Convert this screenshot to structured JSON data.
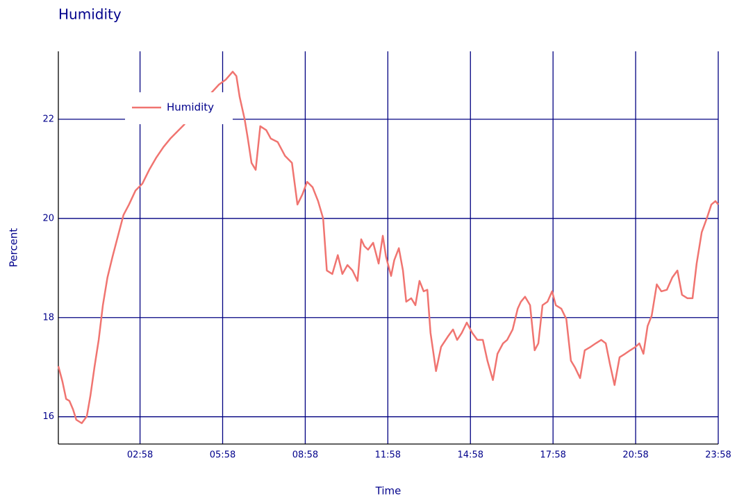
{
  "chart_data": {
    "type": "line",
    "title": "Humidity",
    "x_label": "Time",
    "y_label": "Percent",
    "x": [
      0,
      9,
      17,
      24,
      32,
      39,
      51,
      62,
      70,
      79,
      88,
      97,
      107,
      118,
      130,
      142,
      154,
      168,
      183,
      198,
      213,
      229,
      244,
      259,
      274,
      289,
      304,
      319,
      335,
      350,
      365,
      380,
      388,
      395,
      406,
      413,
      421,
      430,
      440,
      453,
      463,
      478,
      494,
      509,
      521,
      532,
      542,
      554,
      566,
      577,
      585,
      597,
      609,
      619,
      630,
      641,
      652,
      660,
      667,
      675,
      686,
      698,
      707,
      714,
      725,
      732,
      742,
      751,
      758,
      769,
      778,
      787,
      796,
      804,
      811,
      823,
      834,
      849,
      860,
      869,
      879,
      890,
      902,
      913,
      925,
      935,
      947,
      957,
      969,
      978,
      990,
      1001,
      1008,
      1017,
      1028,
      1038,
      1046,
      1055,
      1066,
      1076,
      1084,
      1096,
      1107,
      1117,
      1126,
      1137,
      1147,
      1160,
      1171,
      1183,
      1193,
      1202,
      1212,
      1223,
      1235,
      1246,
      1258,
      1266,
      1275,
      1284,
      1293,
      1304,
      1314,
      1326,
      1338,
      1349,
      1359,
      1371,
      1382,
      1391,
      1402,
      1413,
      1423,
      1432,
      1438
    ],
    "series": [
      {
        "name": "Humidity",
        "color": "#f07470",
        "values": [
          17.02,
          16.71,
          16.36,
          16.32,
          16.15,
          15.94,
          15.87,
          16.01,
          16.43,
          17.02,
          17.55,
          18.25,
          18.81,
          19.23,
          19.65,
          20.07,
          20.28,
          20.56,
          20.7,
          20.98,
          21.22,
          21.44,
          21.61,
          21.75,
          21.89,
          22.1,
          22.24,
          22.38,
          22.55,
          22.7,
          22.8,
          22.96,
          22.87,
          22.45,
          22.0,
          21.61,
          21.12,
          20.98,
          21.86,
          21.78,
          21.61,
          21.54,
          21.26,
          21.12,
          20.28,
          20.49,
          20.74,
          20.63,
          20.35,
          20.0,
          18.95,
          18.88,
          19.26,
          18.88,
          19.06,
          18.95,
          18.74,
          19.58,
          19.44,
          19.37,
          19.51,
          19.09,
          19.65,
          19.23,
          18.84,
          19.16,
          19.4,
          18.95,
          18.32,
          18.39,
          18.25,
          18.74,
          18.53,
          18.56,
          17.69,
          16.92,
          17.41,
          17.62,
          17.76,
          17.55,
          17.69,
          17.9,
          17.69,
          17.55,
          17.55,
          17.13,
          16.74,
          17.27,
          17.48,
          17.55,
          17.76,
          18.18,
          18.32,
          18.42,
          18.25,
          17.34,
          17.48,
          18.25,
          18.32,
          18.53,
          18.25,
          18.18,
          17.97,
          17.13,
          16.99,
          16.78,
          17.34,
          17.41,
          17.48,
          17.55,
          17.48,
          17.06,
          16.64,
          17.2,
          17.27,
          17.34,
          17.41,
          17.48,
          17.27,
          17.83,
          18.04,
          18.67,
          18.53,
          18.56,
          18.81,
          18.95,
          18.46,
          18.39,
          18.39,
          19.09,
          19.72,
          20.0,
          20.28,
          20.35,
          20.28
        ]
      }
    ],
    "xlim": [
      0,
      1438
    ],
    "xticks": [
      {
        "value": 178,
        "label": "02:58"
      },
      {
        "value": 358,
        "label": "05:58"
      },
      {
        "value": 538,
        "label": "08:58"
      },
      {
        "value": 718,
        "label": "11:58"
      },
      {
        "value": 898,
        "label": "14:58"
      },
      {
        "value": 1078,
        "label": "17:58"
      },
      {
        "value": 1258,
        "label": "20:58"
      },
      {
        "value": 1438,
        "label": "23:58"
      }
    ],
    "ylim": [
      15.45,
      23.37
    ],
    "yticks": [
      16,
      18,
      20,
      22
    ],
    "grid": true,
    "grid_color": "#000080",
    "legend": "upper-left"
  }
}
